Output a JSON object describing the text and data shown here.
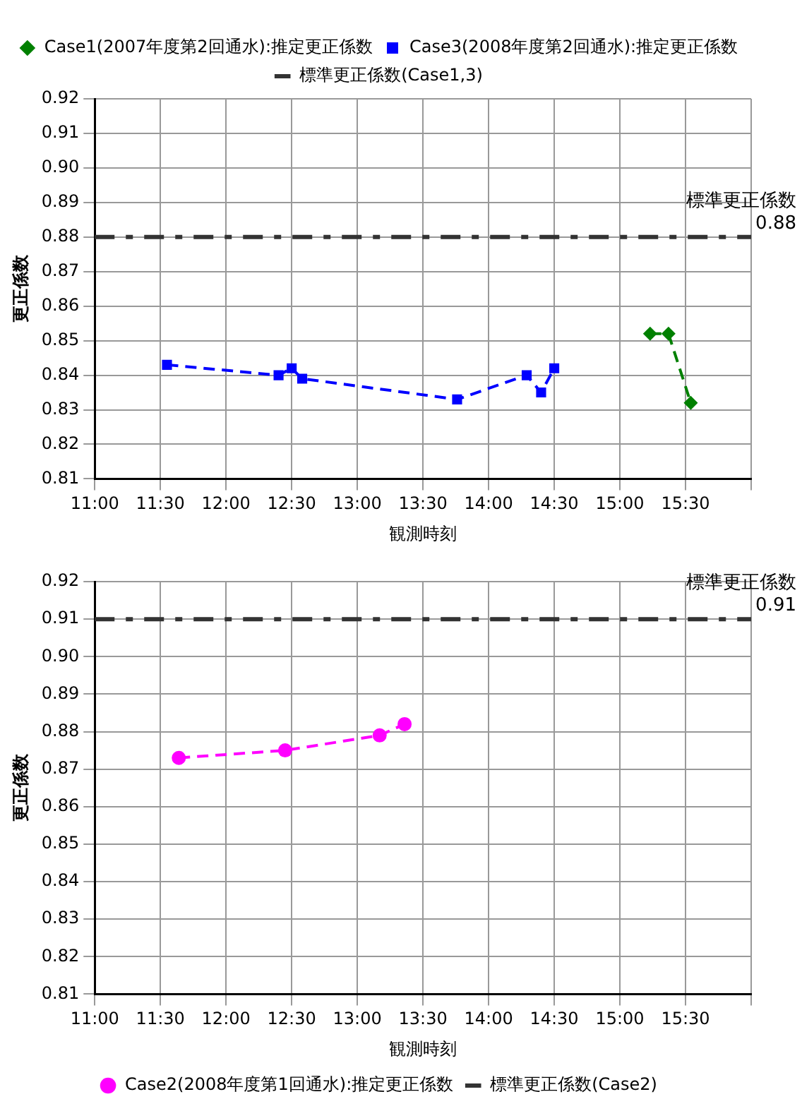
{
  "chart_data": [
    {
      "type": "line",
      "xlabel": "観測時刻",
      "ylabel": "更正係数",
      "xlim": [
        11,
        16
      ],
      "ylim": [
        0.81,
        0.92
      ],
      "xticks": [
        {
          "value": 11,
          "label": "11:00"
        },
        {
          "value": 11.5,
          "label": "11:30"
        },
        {
          "value": 12,
          "label": "12:00"
        },
        {
          "value": 12.5,
          "label": "12:30"
        },
        {
          "value": 13,
          "label": "13:00"
        },
        {
          "value": 13.5,
          "label": "13:30"
        },
        {
          "value": 14,
          "label": "14:00"
        },
        {
          "value": 14.5,
          "label": "14:30"
        },
        {
          "value": 15,
          "label": "15:00"
        },
        {
          "value": 15.5,
          "label": "15:30"
        },
        {
          "value": 16,
          "label": null
        }
      ],
      "yticks": [
        0.81,
        0.82,
        0.83,
        0.84,
        0.85,
        0.86,
        0.87,
        0.88,
        0.89,
        {
          "value": 0.9,
          "label": "0.90"
        },
        0.91,
        0.92
      ],
      "grid": true,
      "legend": "top",
      "line_style": "dashed",
      "series": [
        {
          "name": "Case1(2007年度第2回通水):推定更正係数",
          "color": "#008000",
          "marker": "diamond",
          "x": [
            15.23,
            15.37,
            15.54
          ],
          "values": [
            0.852,
            0.852,
            0.832
          ]
        },
        {
          "name": "Case3(2008年度第2回通水):推定更正係数",
          "color": "#0000ff",
          "marker": "square",
          "x": [
            11.55,
            12.4,
            12.5,
            12.58,
            13.76,
            14.29,
            14.4,
            14.5
          ],
          "values": [
            0.843,
            0.84,
            0.842,
            0.839,
            0.833,
            0.84,
            0.835,
            0.842
          ]
        }
      ],
      "ref_lines": [
        {
          "axis": "y",
          "value": 0.88,
          "label": "標準更正係数(Case1,3)",
          "color": "#333333",
          "line_style": "dashed"
        }
      ],
      "annotations": [
        "標準更正係数",
        "0.88"
      ]
    },
    {
      "type": "line",
      "xlabel": "観測時刻",
      "ylabel": "更正係数",
      "xlim": [
        11,
        16
      ],
      "ylim": [
        0.81,
        0.92
      ],
      "xticks": [
        {
          "value": 11,
          "label": "11:00"
        },
        {
          "value": 11.5,
          "label": "11:30"
        },
        {
          "value": 12,
          "label": "12:00"
        },
        {
          "value": 12.5,
          "label": "12:30"
        },
        {
          "value": 13,
          "label": "13:00"
        },
        {
          "value": 13.5,
          "label": "13:30"
        },
        {
          "value": 14,
          "label": "14:00"
        },
        {
          "value": 14.5,
          "label": "14:30"
        },
        {
          "value": 15,
          "label": "15:00"
        },
        {
          "value": 15.5,
          "label": "15:30"
        },
        {
          "value": 16,
          "label": null
        }
      ],
      "yticks": [
        0.81,
        0.82,
        0.83,
        0.84,
        0.85,
        0.86,
        0.87,
        0.88,
        0.89,
        {
          "value": 0.9,
          "label": "0.90"
        },
        0.91,
        0.92
      ],
      "grid": true,
      "legend": "bottom",
      "line_style": "dashed",
      "series": [
        {
          "name": "Case2(2008年度第1回通水):推定更正係数",
          "color": "#ff00ff",
          "marker": "circle",
          "x": [
            11.64,
            12.45,
            13.17,
            13.36
          ],
          "values": [
            0.873,
            0.875,
            0.879,
            0.882
          ]
        }
      ],
      "ref_lines": [
        {
          "axis": "y",
          "value": 0.91,
          "label": "標準更正係数(Case2)",
          "color": "#333333",
          "line_style": "dashed"
        }
      ],
      "annotations": [
        "標準更正係数",
        "0.91"
      ]
    }
  ]
}
